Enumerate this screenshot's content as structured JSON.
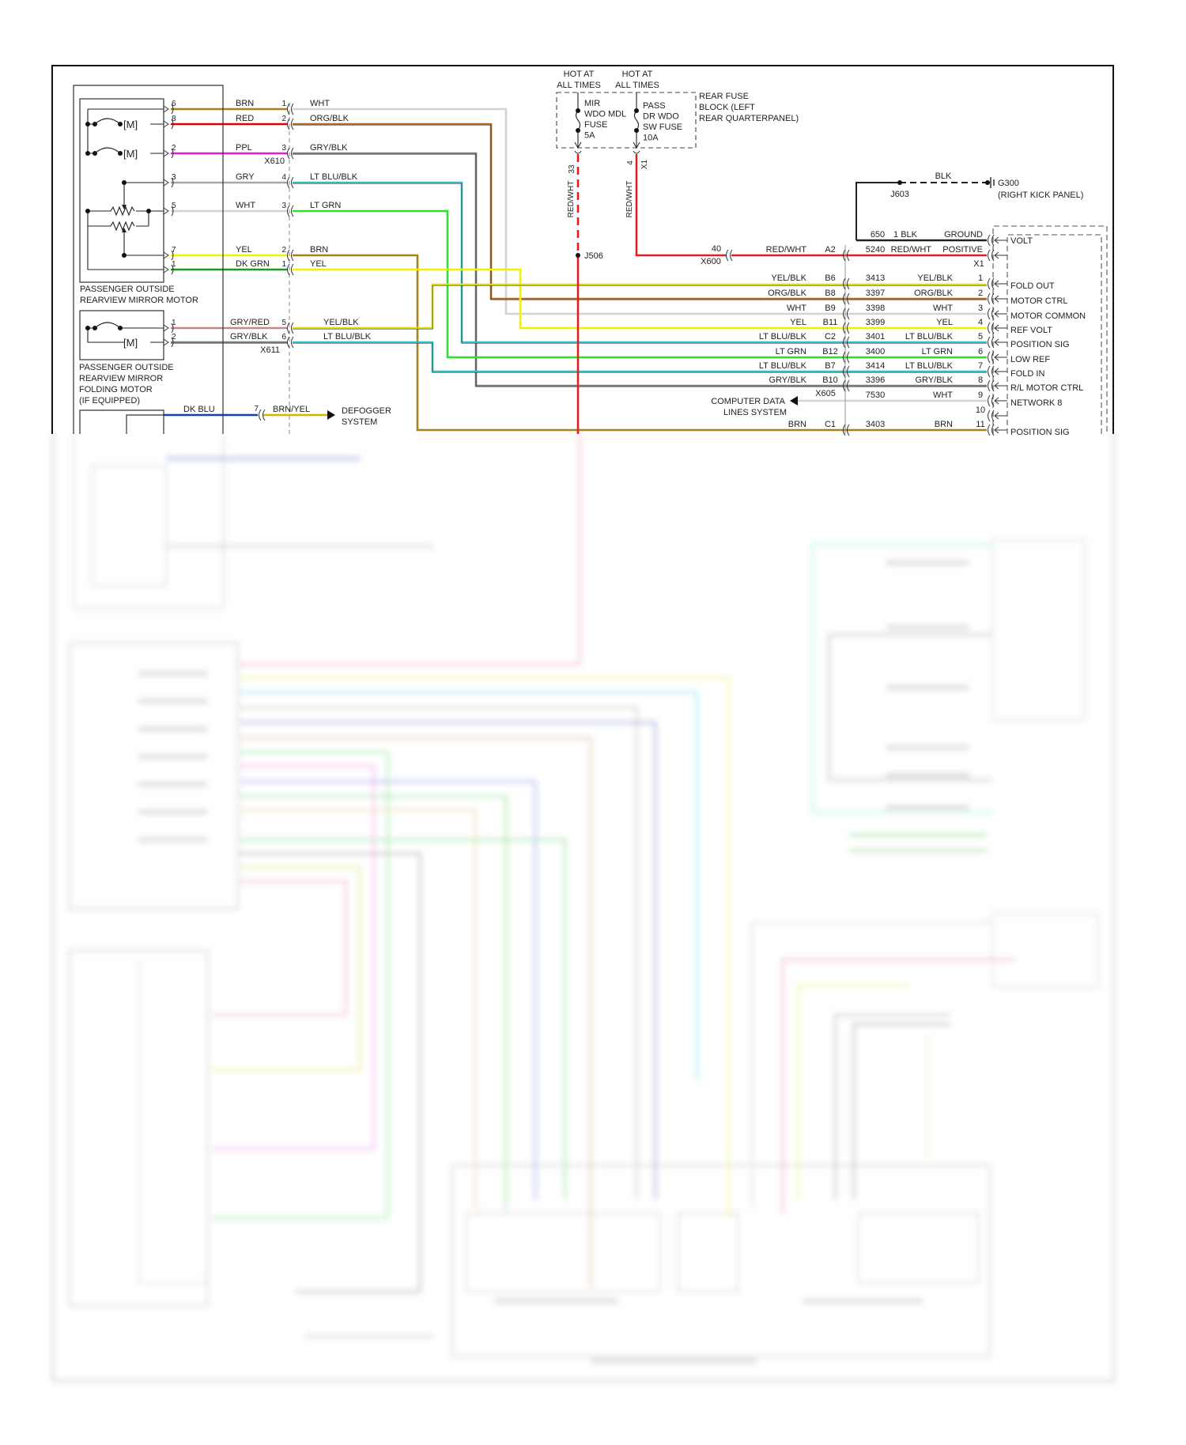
{
  "mirror_motor": {
    "title": [
      "PASSENGER OUTSIDE",
      "REARVIEW MIRROR MOTOR"
    ],
    "connector": "X610",
    "motor_symbol": "[M]",
    "pins": [
      {
        "pin": "6",
        "wire": "BRN",
        "conn_pin": "1",
        "out_wire": "WHT"
      },
      {
        "pin": "8",
        "wire": "RED",
        "conn_pin": "2",
        "out_wire": "ORG/BLK"
      },
      {
        "pin": "2",
        "wire": "PPL",
        "conn_pin": "3",
        "out_wire": "GRY/BLK"
      },
      {
        "pin": "3",
        "wire": "GRY",
        "conn_pin": "4",
        "out_wire": "LT BLU/BLK"
      },
      {
        "pin": "5",
        "wire": "WHT",
        "conn_pin": "3",
        "out_wire": "LT GRN"
      },
      {
        "pin": "7",
        "wire": "YEL",
        "conn_pin": "2",
        "out_wire": "BRN"
      },
      {
        "pin": "1",
        "wire": "DK GRN",
        "conn_pin": "1",
        "out_wire": "YEL"
      }
    ]
  },
  "folding_motor": {
    "title": [
      "PASSENGER OUTSIDE",
      "REARVIEW MIRROR",
      "FOLDING MOTOR",
      "(IF EQUIPPED)"
    ],
    "connector": "X611",
    "motor_symbol": "[M]",
    "pins": [
      {
        "pin": "1",
        "wire": "GRY/RED",
        "conn_pin": "5",
        "out_wire": "YEL/BLK"
      },
      {
        "pin": "2",
        "wire": "GRY/BLK",
        "conn_pin": "6",
        "out_wire": "LT BLU/BLK"
      }
    ]
  },
  "defogger": {
    "wire": "DK BLU",
    "conn_pin": "7",
    "out_wire": "BRN/YEL",
    "destination": [
      "DEFOGGER",
      "SYSTEM"
    ]
  },
  "fuse_block": {
    "title": [
      "REAR FUSE",
      "BLOCK (LEFT",
      "REAR QUARTERPANEL)"
    ],
    "fuses": [
      {
        "hot": [
          "HOT AT",
          "ALL TIMES"
        ],
        "name": [
          "MIR",
          "WDO MDL",
          "FUSE",
          "5A"
        ],
        "pin": "33",
        "wire": "RED/WHT"
      },
      {
        "hot": [
          "HOT AT",
          "ALL TIMES"
        ],
        "name": [
          "PASS",
          "DR WDO",
          "SW FUSE",
          "10A"
        ],
        "pin": "4",
        "connector": "X1",
        "wire": "RED/WHT"
      }
    ],
    "splice": "J506"
  },
  "ground": {
    "wire": "BLK",
    "splice": "J603",
    "ground": "G300",
    "location": "(RIGHT KICK PANEL)"
  },
  "x600": {
    "pin": "40",
    "name": "X600"
  },
  "module": {
    "connector": "X605",
    "data_lines": [
      "COMPUTER DATA",
      "LINES SYSTEM"
    ],
    "power_rows": [
      {
        "circuit": "650",
        "wire": "1 BLK",
        "overlay": "GROUND",
        "label": "VOLT"
      },
      {
        "left_wire": "RED/WHT",
        "code": "A2",
        "circuit": "5240",
        "wire": "RED/WHT",
        "overlay": "POSITIVE",
        "pin": "X1"
      }
    ],
    "rows": [
      {
        "left_wire": "YEL/BLK",
        "code": "B6",
        "circuit": "3413",
        "wire": "YEL/BLK",
        "pin": "1",
        "label": "FOLD OUT"
      },
      {
        "left_wire": "ORG/BLK",
        "code": "B8",
        "circuit": "3397",
        "wire": "ORG/BLK",
        "pin": "2",
        "label": "MOTOR CTRL"
      },
      {
        "left_wire": "WHT",
        "code": "B9",
        "circuit": "3398",
        "wire": "WHT",
        "pin": "3",
        "label": "MOTOR COMMON"
      },
      {
        "left_wire": "YEL",
        "code": "B11",
        "circuit": "3399",
        "wire": "YEL",
        "pin": "4",
        "label": "REF VOLT"
      },
      {
        "left_wire": "LT BLU/BLK",
        "code": "C2",
        "circuit": "3401",
        "wire": "LT BLU/BLK",
        "pin": "5",
        "label": "POSITION SIG"
      },
      {
        "left_wire": "LT GRN",
        "code": "B12",
        "circuit": "3400",
        "wire": "LT GRN",
        "pin": "6",
        "label": "LOW REF"
      },
      {
        "left_wire": "LT BLU/BLK",
        "code": "B7",
        "circuit": "3414",
        "wire": "LT BLU/BLK",
        "pin": "7",
        "label": "FOLD IN"
      },
      {
        "left_wire": "GRY/BLK",
        "code": "B10",
        "circuit": "3396",
        "wire": "GRY/BLK",
        "pin": "8",
        "label": "R/L MOTOR CTRL"
      },
      {
        "left_wire": "",
        "code": "",
        "circuit": "7530",
        "wire": "WHT",
        "pin": "9",
        "label": "NETWORK 8"
      },
      {
        "left_wire": "",
        "code": "",
        "circuit": "",
        "wire": "",
        "pin": "10",
        "label": ""
      },
      {
        "left_wire": "BRN",
        "code": "C1",
        "circuit": "3403",
        "wire": "BRN",
        "pin": "11",
        "label": "POSITION SIG"
      }
    ]
  },
  "wire_colors": {
    "BRN": "#a8801c",
    "RED": "#e00000",
    "PPL": "#e020c8",
    "GRY": "#a8a8a8",
    "WHT": "#d2d2d2",
    "YEL": "#f2f200",
    "DK GRN": "#1a9a1a",
    "ORG/BLK": "#b86a20",
    "GRY/BLK": "#7c7c7c",
    "LT BLU/BLK": "#30c4c8",
    "LT GRN": "#30e030",
    "GRY/RED": "#c08888",
    "YEL/BLK": "#e4e000",
    "DK BLU": "#1040b0",
    "BRN/YEL": "#d8b400",
    "RED/WHT": "#e02020",
    "BLK": "#202020"
  }
}
